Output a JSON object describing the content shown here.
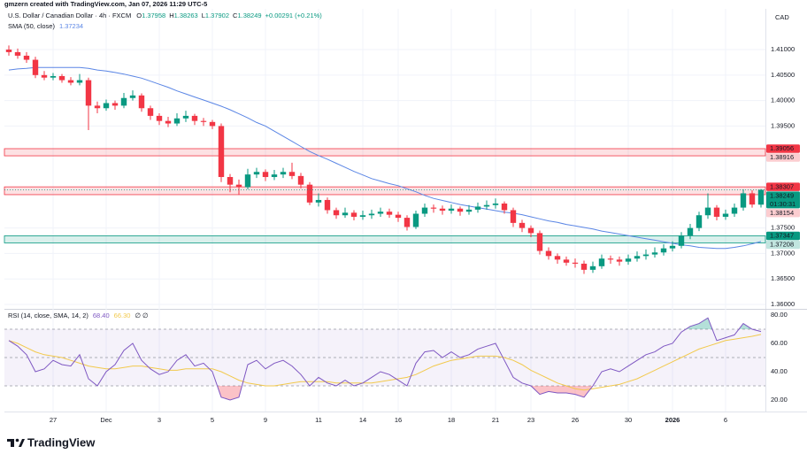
{
  "header": {
    "credit": "gmzern created with TradingView.com, Jan 07, 2026 11:29 UTC-5"
  },
  "footer": {
    "brand": "TradingView"
  },
  "chart_data": [
    {
      "type": "candlestick",
      "title": "U.S. Dollar / Canadian Dollar · 4h · FXCM",
      "currency": "CAD",
      "ohlc_prefixes": [
        "O",
        "H",
        "L",
        "C"
      ],
      "change": "+0.00291 (+0.21%)",
      "up_color": "#089981",
      "down_color": "#f23645",
      "grid": true,
      "ylim": [
        1.35931,
        1.41799
      ],
      "yticks": [
        {
          "value": 1.41,
          "label": "1.41000"
        },
        {
          "value": 1.405,
          "label": "1.40500"
        },
        {
          "value": 1.4,
          "label": "1.40000"
        },
        {
          "value": 1.395,
          "label": "1.39500"
        },
        {
          "value": 1.375,
          "label": "1.37500"
        },
        {
          "value": 1.37,
          "label": "1.37000"
        },
        {
          "value": 1.365,
          "label": "1.36500"
        },
        {
          "value": 1.36,
          "label": "1.36000"
        }
      ],
      "categories": [
        null,
        null,
        null,
        null,
        null,
        "27",
        null,
        null,
        null,
        null,
        null,
        "Dec",
        null,
        null,
        null,
        null,
        null,
        "3",
        null,
        null,
        null,
        null,
        null,
        "5",
        null,
        null,
        null,
        null,
        null,
        "9",
        null,
        null,
        null,
        null,
        null,
        "11",
        null,
        null,
        null,
        null,
        "14",
        null,
        null,
        null,
        "16",
        null,
        null,
        null,
        null,
        null,
        "18",
        null,
        null,
        null,
        null,
        "21",
        null,
        null,
        null,
        "23",
        null,
        null,
        null,
        null,
        "26",
        null,
        null,
        null,
        null,
        null,
        "30",
        null,
        null,
        null,
        null,
        "2026",
        null,
        null,
        null,
        null,
        null,
        "6",
        null,
        null,
        null,
        null
      ],
      "open": [
        1.41,
        1.4095,
        1.4088,
        1.408,
        1.405,
        1.4045,
        1.4048,
        1.404,
        1.4035,
        1.404,
        1.399,
        1.3985,
        1.3995,
        1.399,
        1.4005,
        1.401,
        1.3985,
        1.397,
        1.396,
        1.3955,
        1.3965,
        1.397,
        1.396,
        1.3958,
        1.395,
        1.385,
        1.3835,
        1.383,
        1.3855,
        1.386,
        1.385,
        1.3855,
        1.386,
        1.3852,
        1.3835,
        1.38,
        1.3805,
        1.3785,
        1.3775,
        1.378,
        1.3772,
        1.3775,
        1.3778,
        1.3782,
        1.3776,
        1.377,
        1.3752,
        1.3778,
        1.379,
        1.3788,
        1.3784,
        1.3788,
        1.3782,
        1.3786,
        1.3792,
        1.3795,
        1.3798,
        1.3785,
        1.376,
        1.375,
        1.374,
        1.3705,
        1.3695,
        1.3688,
        1.3682,
        1.368,
        1.3668,
        1.3675,
        1.369,
        1.3688,
        1.3684,
        1.369,
        1.3695,
        1.3698,
        1.3702,
        1.371,
        1.3715,
        1.3735,
        1.375,
        1.3775,
        1.379,
        1.3772,
        1.3778,
        1.379,
        1.3818,
        1.37958
      ],
      "high": [
        1.4108,
        1.4102,
        1.4095,
        1.4086,
        1.4058,
        1.4054,
        1.4052,
        1.4046,
        1.4052,
        1.4045,
        1.3998,
        1.4002,
        1.4,
        1.4015,
        1.402,
        1.4014,
        1.399,
        1.3975,
        1.3968,
        1.3975,
        1.398,
        1.3974,
        1.3966,
        1.3962,
        1.3955,
        1.3856,
        1.3845,
        1.3866,
        1.3868,
        1.3865,
        1.3864,
        1.3868,
        1.3878,
        1.3858,
        1.384,
        1.3818,
        1.381,
        1.379,
        1.379,
        1.3785,
        1.3784,
        1.3786,
        1.379,
        1.3788,
        1.3782,
        1.3775,
        1.3784,
        1.3798,
        1.3796,
        1.3794,
        1.3796,
        1.3792,
        1.3795,
        1.38,
        1.3804,
        1.3808,
        1.3802,
        1.379,
        1.3766,
        1.3755,
        1.3745,
        1.3712,
        1.37,
        1.3694,
        1.369,
        1.3686,
        1.3684,
        1.3698,
        1.3696,
        1.3694,
        1.3698,
        1.3704,
        1.3708,
        1.3712,
        1.3718,
        1.3724,
        1.3742,
        1.3758,
        1.3782,
        1.3818,
        1.3795,
        1.3786,
        1.3798,
        1.3826,
        1.3824,
        1.38263
      ],
      "low": [
        1.4088,
        1.4082,
        1.4074,
        1.4044,
        1.404,
        1.404,
        1.4035,
        1.403,
        1.403,
        1.3942,
        1.3975,
        1.398,
        1.3982,
        1.3985,
        1.4,
        1.3978,
        1.3962,
        1.3952,
        1.3948,
        1.395,
        1.3958,
        1.3952,
        1.395,
        1.3944,
        1.384,
        1.382,
        1.3815,
        1.3826,
        1.3848,
        1.3842,
        1.3844,
        1.3848,
        1.3846,
        1.3828,
        1.3795,
        1.3792,
        1.3778,
        1.3768,
        1.377,
        1.3765,
        1.3766,
        1.3768,
        1.3772,
        1.377,
        1.3762,
        1.3745,
        1.3748,
        1.3772,
        1.378,
        1.3776,
        1.3778,
        1.3774,
        1.3776,
        1.378,
        1.3786,
        1.3788,
        1.3778,
        1.3752,
        1.3742,
        1.3732,
        1.3698,
        1.3688,
        1.368,
        1.3676,
        1.3672,
        1.366,
        1.3662,
        1.367,
        1.368,
        1.3676,
        1.3678,
        1.3684,
        1.3688,
        1.3692,
        1.3696,
        1.3704,
        1.371,
        1.3728,
        1.3744,
        1.3768,
        1.3765,
        1.3766,
        1.3772,
        1.3784,
        1.379,
        1.37902
      ],
      "close": [
        1.4095,
        1.4088,
        1.408,
        1.405,
        1.4045,
        1.4048,
        1.404,
        1.4035,
        1.404,
        1.399,
        1.3985,
        1.3995,
        1.399,
        1.4005,
        1.401,
        1.3985,
        1.397,
        1.396,
        1.3955,
        1.3965,
        1.397,
        1.396,
        1.3958,
        1.395,
        1.385,
        1.3835,
        1.383,
        1.3855,
        1.386,
        1.385,
        1.3855,
        1.386,
        1.3852,
        1.3835,
        1.38,
        1.3805,
        1.3785,
        1.3775,
        1.378,
        1.3772,
        1.3775,
        1.3778,
        1.3782,
        1.3776,
        1.377,
        1.3752,
        1.3778,
        1.379,
        1.3788,
        1.3784,
        1.3788,
        1.3782,
        1.3786,
        1.3792,
        1.3795,
        1.3798,
        1.3785,
        1.376,
        1.375,
        1.374,
        1.3705,
        1.3695,
        1.3688,
        1.3682,
        1.368,
        1.3668,
        1.3675,
        1.369,
        1.3688,
        1.3684,
        1.369,
        1.3695,
        1.3698,
        1.3702,
        1.371,
        1.3715,
        1.3735,
        1.375,
        1.3775,
        1.379,
        1.3772,
        1.3778,
        1.379,
        1.3818,
        1.3796,
        1.38249
      ],
      "sma": {
        "name": "SMA (50, close)",
        "color": "#5b86e5",
        "values": [
          1.406,
          1.4062,
          1.4063,
          1.4065,
          1.4065,
          1.4065,
          1.4065,
          1.4065,
          1.4065,
          1.4063,
          1.406,
          1.4058,
          1.4055,
          1.4052,
          1.4048,
          1.4044,
          1.4038,
          1.4032,
          1.4026,
          1.4019,
          1.4013,
          1.4007,
          1.4001,
          1.3995,
          1.3989,
          1.3982,
          1.3974,
          1.3966,
          1.3957,
          1.395,
          1.394,
          1.393,
          1.392,
          1.391,
          1.39,
          1.3892,
          1.3885,
          1.3877,
          1.3869,
          1.3861,
          1.3854,
          1.3847,
          1.3842,
          1.3837,
          1.3833,
          1.3827,
          1.3821,
          1.3814,
          1.3808,
          1.3804,
          1.38,
          1.3796,
          1.3793,
          1.379,
          1.3787,
          1.3784,
          1.3781,
          1.3779,
          1.3776,
          1.3772,
          1.3768,
          1.3764,
          1.3761,
          1.3757,
          1.3754,
          1.3751,
          1.3748,
          1.3744,
          1.3741,
          1.3738,
          1.3735,
          1.3732,
          1.3729,
          1.3726,
          1.3723,
          1.372,
          1.3717,
          1.3715,
          1.3712,
          1.3711,
          1.371,
          1.371,
          1.3712,
          1.3715,
          1.3719,
          1.37234
        ]
      },
      "zones": [
        {
          "high": 1.39056,
          "low": 1.38916,
          "high_label": "1.39056",
          "low_label": "1.38916",
          "color": "#f23645"
        },
        {
          "high": 1.38307,
          "low": 1.38154,
          "high_label": "1.38307",
          "low_label": "1.38154",
          "color": "#f23645"
        },
        {
          "high": 1.37347,
          "low": 1.37208,
          "high_label": "1.37347",
          "low_label": "1.37208",
          "color": "#089981"
        }
      ],
      "countdown": "01:30:31"
    },
    {
      "type": "rsi",
      "title": "RSI (14, close, SMA, 14, 2)",
      "color": "#7e57c2",
      "current_label": "68.40",
      "extra": "∅ ∅",
      "ylim": [
        11.875,
        83.75
      ],
      "yticks": [
        {
          "value": 80,
          "label": "80.00"
        },
        {
          "value": 60,
          "label": "60.00"
        },
        {
          "value": 40,
          "label": "40.00"
        },
        {
          "value": 20,
          "label": "20.00"
        }
      ],
      "bands": [
        70,
        50,
        30
      ],
      "values": [
        62,
        58,
        52,
        40,
        42,
        48,
        45,
        44,
        52,
        35,
        30,
        40,
        45,
        55,
        60,
        48,
        42,
        38,
        40,
        48,
        52,
        44,
        46,
        40,
        22,
        20,
        22,
        45,
        48,
        42,
        46,
        48,
        44,
        38,
        30,
        36,
        32,
        30,
        34,
        30,
        32,
        36,
        40,
        38,
        34,
        30,
        46,
        54,
        55,
        50,
        54,
        50,
        52,
        56,
        58,
        60,
        48,
        36,
        32,
        30,
        24,
        26,
        25,
        25,
        24,
        22,
        30,
        40,
        42,
        40,
        44,
        48,
        52,
        54,
        58,
        60,
        68,
        72,
        74,
        78,
        62,
        64,
        66,
        74,
        70,
        68.4
      ],
      "sma": {
        "color": "#f2c94c",
        "current_label": "66.30",
        "values": [
          62,
          60,
          57,
          54,
          52,
          51,
          50,
          48,
          46,
          44,
          43,
          42,
          42,
          43,
          44,
          44,
          43,
          42,
          41,
          41,
          42,
          42,
          42,
          42,
          40,
          37,
          34,
          32,
          31,
          30,
          30,
          31,
          32,
          33,
          33,
          33,
          33,
          32,
          32,
          32,
          32,
          32,
          33,
          34,
          35,
          36,
          38,
          41,
          44,
          46,
          48,
          49,
          50,
          51,
          51,
          51,
          50,
          48,
          45,
          41,
          38,
          35,
          32,
          30,
          28,
          27,
          28,
          29,
          30,
          31,
          33,
          35,
          38,
          41,
          44,
          47,
          50,
          53,
          56,
          58,
          60,
          62,
          63,
          64,
          65,
          66.3
        ]
      }
    }
  ]
}
